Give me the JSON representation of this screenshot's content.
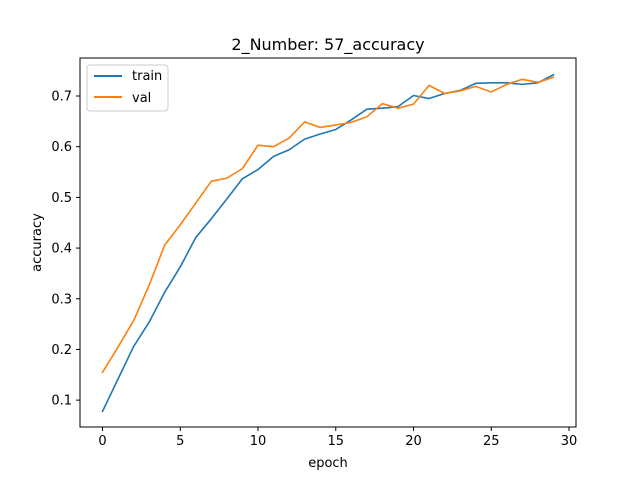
{
  "chart_data": {
    "type": "line",
    "title": "2_Number: 57_accuracy",
    "xlabel": "epoch",
    "ylabel": "accuracy",
    "xlim": [
      -1.45,
      30.45
    ],
    "ylim": [
      0.047,
      0.775
    ],
    "xticks": [
      0,
      5,
      10,
      15,
      20,
      25,
      30
    ],
    "yticks": [
      0.1,
      0.2,
      0.3,
      0.4,
      0.5,
      0.6,
      0.7
    ],
    "xtick_labels": [
      "0",
      "5",
      "10",
      "15",
      "20",
      "25",
      "30"
    ],
    "ytick_labels": [
      "0.1",
      "0.2",
      "0.3",
      "0.4",
      "0.5",
      "0.6",
      "0.7"
    ],
    "grid": false,
    "legend_position": "top-left",
    "x": [
      0,
      1,
      2,
      3,
      4,
      5,
      6,
      7,
      8,
      9,
      10,
      11,
      12,
      13,
      14,
      15,
      16,
      17,
      18,
      19,
      20,
      21,
      22,
      23,
      24,
      25,
      26,
      27,
      28,
      29
    ],
    "series": [
      {
        "name": "train",
        "color": "#1f77b4",
        "values": [
          0.078,
          0.142,
          0.206,
          0.254,
          0.313,
          0.363,
          0.421,
          0.458,
          0.497,
          0.537,
          0.555,
          0.581,
          0.594,
          0.615,
          0.625,
          0.634,
          0.653,
          0.674,
          0.676,
          0.679,
          0.701,
          0.695,
          0.705,
          0.711,
          0.725,
          0.726,
          0.726,
          0.723,
          0.726,
          0.742
        ]
      },
      {
        "name": "val",
        "color": "#ff7f0e",
        "values": [
          0.155,
          0.205,
          0.257,
          0.327,
          0.406,
          0.446,
          0.489,
          0.532,
          0.538,
          0.557,
          0.603,
          0.6,
          0.617,
          0.649,
          0.638,
          0.643,
          0.648,
          0.659,
          0.685,
          0.676,
          0.684,
          0.721,
          0.705,
          0.71,
          0.719,
          0.708,
          0.723,
          0.733,
          0.727,
          0.737
        ]
      }
    ]
  }
}
